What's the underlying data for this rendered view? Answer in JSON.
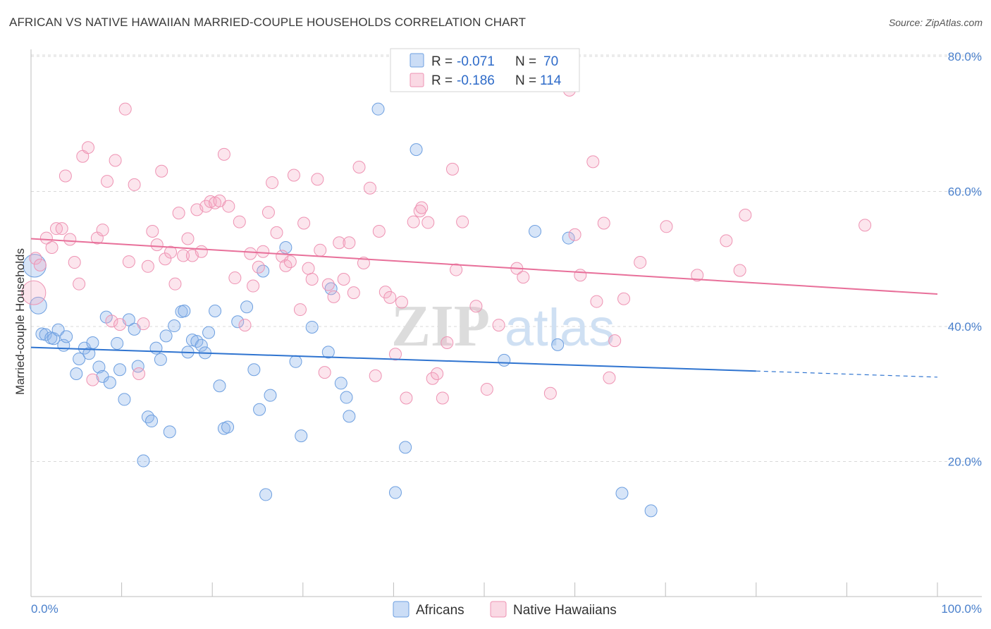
{
  "title": "AFRICAN VS NATIVE HAWAIIAN MARRIED-COUPLE HOUSEHOLDS CORRELATION CHART",
  "source": "Source: ZipAtlas.com",
  "watermark": {
    "zip": "ZIP",
    "atlas": "atlas"
  },
  "colors": {
    "africans_fill": "rgba(140,180,235,0.35)",
    "africans_stroke": "#6d9fe0",
    "africans_line": "#2f74d0",
    "hawaiians_fill": "rgba(245,170,195,0.30)",
    "hawaiians_stroke": "#ee93b3",
    "hawaiians_line": "#e8709a",
    "grid": "#d9d9d9",
    "tick_label": "#4a80cc"
  },
  "legend": {
    "rows": [
      {
        "r_label": "R =",
        "r_value": "-0.071",
        "n_label": "N =",
        "n_value": "70"
      },
      {
        "r_label": "R =",
        "r_value": "-0.186",
        "n_label": "N =",
        "n_value": "114"
      }
    ]
  },
  "chart_data": {
    "type": "scatter",
    "title": "AFRICAN VS NATIVE HAWAIIAN MARRIED-COUPLE HOUSEHOLDS CORRELATION CHART",
    "xlabel": "",
    "ylabel": "Married-couple Households",
    "xlim": [
      0,
      100
    ],
    "ylim": [
      0,
      83
    ],
    "x_tick_labels": [
      "0.0%",
      "100.0%"
    ],
    "y_ticks": [
      20,
      40,
      60,
      80
    ],
    "y_tick_labels": [
      "20.0%",
      "40.0%",
      "60.0%",
      "80.0%"
    ],
    "series": [
      {
        "name": "Africans",
        "r": -0.071,
        "n": 70,
        "trend": {
          "x0": 0,
          "y0": 36.9,
          "x1": 80,
          "y1": 33.4,
          "dashed_to_x": 100,
          "dashed_to_y": 32.5
        },
        "points": [
          [
            0.4,
            49.0,
            1.9
          ],
          [
            0.8,
            43.1,
            1.4
          ],
          [
            1.2,
            38.9,
            1.0
          ],
          [
            1.6,
            38.8,
            1.0
          ],
          [
            2.2,
            38.3,
            1.0
          ],
          [
            2.5,
            38.2,
            1.0
          ],
          [
            3.0,
            39.5,
            1.0
          ],
          [
            3.6,
            37.2,
            1.0
          ],
          [
            3.9,
            38.5,
            1.0
          ],
          [
            5.0,
            33.0,
            1.0
          ],
          [
            5.3,
            35.2,
            1.0
          ],
          [
            5.9,
            36.8,
            1.0
          ],
          [
            6.4,
            36.0,
            1.0
          ],
          [
            6.8,
            37.6,
            1.0
          ],
          [
            7.5,
            34.0,
            1.0
          ],
          [
            7.9,
            32.6,
            1.0
          ],
          [
            8.3,
            41.4,
            1.0
          ],
          [
            8.7,
            31.7,
            1.0
          ],
          [
            9.5,
            37.5,
            1.0
          ],
          [
            9.8,
            33.6,
            1.0
          ],
          [
            10.3,
            29.2,
            1.0
          ],
          [
            10.8,
            41.0,
            1.0
          ],
          [
            11.4,
            39.6,
            1.0
          ],
          [
            11.8,
            34.1,
            1.0
          ],
          [
            12.4,
            20.1,
            1.0
          ],
          [
            12.9,
            26.6,
            1.0
          ],
          [
            13.3,
            26.0,
            1.0
          ],
          [
            13.8,
            36.8,
            1.0
          ],
          [
            14.3,
            35.1,
            1.0
          ],
          [
            14.9,
            38.6,
            1.0
          ],
          [
            15.3,
            24.4,
            1.0
          ],
          [
            15.8,
            40.1,
            1.0
          ],
          [
            16.6,
            42.2,
            1.0
          ],
          [
            16.9,
            42.3,
            1.0
          ],
          [
            17.3,
            36.2,
            1.0
          ],
          [
            17.8,
            38.0,
            1.0
          ],
          [
            18.3,
            37.8,
            1.0
          ],
          [
            18.8,
            37.2,
            1.0
          ],
          [
            19.2,
            36.1,
            1.0
          ],
          [
            19.6,
            39.1,
            1.0
          ],
          [
            20.3,
            42.3,
            1.0
          ],
          [
            20.8,
            31.2,
            1.0
          ],
          [
            21.3,
            24.9,
            1.0
          ],
          [
            21.7,
            25.1,
            1.0
          ],
          [
            22.8,
            40.7,
            1.0
          ],
          [
            23.8,
            42.9,
            1.0
          ],
          [
            24.6,
            33.6,
            1.0
          ],
          [
            25.2,
            27.7,
            1.0
          ],
          [
            25.6,
            48.2,
            1.0
          ],
          [
            25.9,
            15.1,
            1.0
          ],
          [
            26.4,
            29.8,
            1.0
          ],
          [
            28.1,
            51.7,
            1.0
          ],
          [
            29.2,
            34.8,
            1.0
          ],
          [
            29.8,
            23.8,
            1.0
          ],
          [
            31.0,
            39.9,
            1.0
          ],
          [
            32.8,
            36.2,
            1.0
          ],
          [
            33.1,
            45.6,
            1.0
          ],
          [
            34.2,
            31.6,
            1.0
          ],
          [
            34.8,
            29.5,
            1.0
          ],
          [
            35.1,
            26.7,
            1.0
          ],
          [
            38.3,
            72.2,
            1.0
          ],
          [
            40.2,
            15.4,
            1.0
          ],
          [
            41.3,
            22.1,
            1.0
          ],
          [
            42.5,
            66.2,
            1.0
          ],
          [
            52.2,
            35.0,
            1.0
          ],
          [
            55.6,
            54.1,
            1.0
          ],
          [
            58.1,
            37.3,
            1.0
          ],
          [
            59.3,
            53.1,
            1.0
          ],
          [
            65.2,
            15.3,
            1.0
          ],
          [
            68.4,
            12.7,
            1.0
          ]
        ]
      },
      {
        "name": "Native Hawaiians",
        "r": -0.186,
        "n": 114,
        "trend": {
          "x0": 0,
          "y0": 53.0,
          "x1": 100,
          "y1": 44.8
        },
        "points": [
          [
            0.3,
            45.0,
            2.0
          ],
          [
            0.5,
            50.1,
            1.0
          ],
          [
            1.0,
            49.1,
            1.0
          ],
          [
            1.7,
            53.1,
            1.0
          ],
          [
            2.3,
            51.7,
            1.0
          ],
          [
            2.8,
            54.5,
            1.0
          ],
          [
            3.4,
            54.5,
            1.0
          ],
          [
            3.8,
            62.3,
            1.0
          ],
          [
            4.3,
            52.9,
            1.0
          ],
          [
            4.8,
            49.5,
            1.0
          ],
          [
            5.3,
            46.3,
            1.0
          ],
          [
            5.7,
            65.2,
            1.0
          ],
          [
            6.3,
            66.5,
            1.0
          ],
          [
            6.8,
            32.1,
            1.0
          ],
          [
            7.3,
            53.1,
            1.0
          ],
          [
            7.9,
            54.3,
            1.0
          ],
          [
            8.4,
            61.5,
            1.0
          ],
          [
            8.9,
            40.8,
            1.0
          ],
          [
            9.3,
            64.6,
            1.0
          ],
          [
            9.8,
            40.3,
            1.0
          ],
          [
            10.4,
            72.2,
            1.0
          ],
          [
            10.8,
            49.6,
            1.0
          ],
          [
            11.4,
            61.0,
            1.0
          ],
          [
            11.9,
            33.0,
            1.0
          ],
          [
            12.4,
            40.4,
            1.0
          ],
          [
            12.9,
            48.9,
            1.0
          ],
          [
            13.4,
            54.1,
            1.0
          ],
          [
            13.9,
            52.1,
            1.0
          ],
          [
            14.4,
            63.0,
            1.0
          ],
          [
            14.8,
            50.0,
            1.0
          ],
          [
            15.4,
            51.0,
            1.0
          ],
          [
            15.9,
            46.3,
            1.0
          ],
          [
            16.3,
            56.8,
            1.0
          ],
          [
            16.8,
            50.5,
            1.0
          ],
          [
            17.3,
            53.0,
            1.0
          ],
          [
            17.8,
            50.5,
            1.0
          ],
          [
            18.3,
            57.3,
            1.0
          ],
          [
            18.8,
            51.1,
            1.0
          ],
          [
            19.3,
            57.8,
            1.0
          ],
          [
            19.8,
            58.5,
            1.0
          ],
          [
            20.3,
            58.3,
            1.0
          ],
          [
            20.8,
            58.6,
            1.0
          ],
          [
            21.3,
            65.5,
            1.0
          ],
          [
            21.8,
            57.8,
            1.0
          ],
          [
            22.5,
            47.2,
            1.0
          ],
          [
            23.0,
            55.5,
            1.0
          ],
          [
            23.6,
            40.2,
            1.0
          ],
          [
            24.2,
            50.8,
            1.0
          ],
          [
            24.5,
            46.0,
            1.0
          ],
          [
            25.1,
            48.8,
            1.0
          ],
          [
            25.6,
            51.1,
            1.0
          ],
          [
            26.2,
            56.9,
            1.0
          ],
          [
            26.6,
            61.3,
            1.0
          ],
          [
            27.1,
            53.9,
            1.0
          ],
          [
            27.7,
            50.4,
            1.0
          ],
          [
            28.1,
            49.0,
            1.0
          ],
          [
            28.6,
            49.6,
            1.0
          ],
          [
            29.0,
            62.4,
            1.0
          ],
          [
            29.7,
            42.5,
            1.0
          ],
          [
            30.1,
            55.3,
            1.0
          ],
          [
            30.6,
            48.6,
            1.0
          ],
          [
            31.0,
            47.0,
            1.0
          ],
          [
            31.6,
            61.8,
            1.0
          ],
          [
            31.9,
            51.3,
            1.0
          ],
          [
            32.4,
            33.2,
            1.0
          ],
          [
            32.8,
            46.2,
            1.0
          ],
          [
            33.4,
            44.4,
            1.0
          ],
          [
            34.0,
            52.4,
            1.0
          ],
          [
            34.5,
            47.0,
            1.0
          ],
          [
            35.1,
            52.4,
            1.0
          ],
          [
            35.6,
            45.0,
            1.0
          ],
          [
            36.2,
            63.6,
            1.0
          ],
          [
            36.7,
            49.4,
            1.0
          ],
          [
            37.4,
            60.5,
            1.0
          ],
          [
            38.0,
            32.7,
            1.0
          ],
          [
            38.4,
            54.1,
            1.0
          ],
          [
            39.1,
            45.1,
            1.0
          ],
          [
            39.6,
            44.3,
            1.0
          ],
          [
            40.2,
            35.9,
            1.0
          ],
          [
            40.9,
            43.6,
            1.0
          ],
          [
            41.4,
            29.4,
            1.0
          ],
          [
            42.2,
            55.5,
            1.0
          ],
          [
            42.9,
            57.1,
            1.0
          ],
          [
            43.1,
            57.6,
            1.0
          ],
          [
            43.8,
            55.4,
            1.0
          ],
          [
            44.3,
            32.3,
            1.0
          ],
          [
            44.8,
            33.0,
            1.0
          ],
          [
            45.4,
            29.4,
            1.0
          ],
          [
            45.9,
            37.6,
            1.0
          ],
          [
            46.5,
            63.3,
            1.0
          ],
          [
            46.9,
            48.4,
            1.0
          ],
          [
            47.6,
            55.5,
            1.0
          ],
          [
            49.1,
            43.0,
            1.0
          ],
          [
            50.3,
            30.7,
            1.0
          ],
          [
            51.6,
            40.2,
            1.0
          ],
          [
            53.6,
            48.6,
            1.0
          ],
          [
            54.3,
            47.3,
            1.0
          ],
          [
            57.3,
            30.1,
            1.0
          ],
          [
            59.4,
            75.0,
            1.0
          ],
          [
            60.0,
            53.6,
            1.0
          ],
          [
            60.6,
            47.6,
            1.0
          ],
          [
            62.0,
            64.4,
            1.0
          ],
          [
            62.4,
            43.7,
            1.0
          ],
          [
            63.2,
            55.3,
            1.0
          ],
          [
            63.8,
            32.4,
            1.0
          ],
          [
            64.4,
            37.9,
            1.0
          ],
          [
            65.4,
            44.1,
            1.0
          ],
          [
            67.2,
            49.5,
            1.0
          ],
          [
            70.1,
            54.8,
            1.0
          ],
          [
            73.5,
            47.6,
            1.0
          ],
          [
            76.7,
            52.7,
            1.0
          ],
          [
            78.2,
            48.3,
            1.0
          ],
          [
            78.8,
            56.5,
            1.0
          ],
          [
            92.0,
            55.0,
            1.0
          ]
        ]
      }
    ]
  },
  "bottom_legend": [
    {
      "label": "Africans"
    },
    {
      "label": "Native Hawaiians"
    }
  ]
}
